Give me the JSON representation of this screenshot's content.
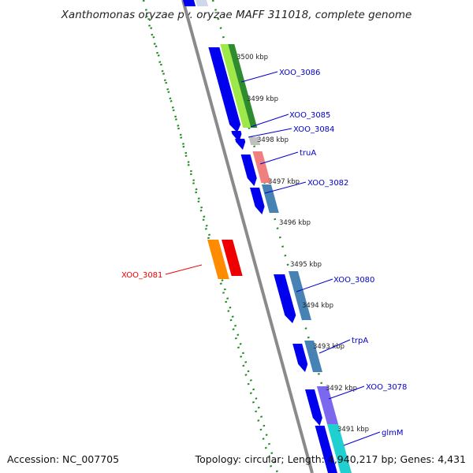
{
  "header": {
    "title": "Xanthomonas oryzae pv. oryzae MAFF 311018, complete genome"
  },
  "footer": {
    "accession": "Accession: NC_007705",
    "summary": "Topology: circular; Length: 4,940,217 bp; Genes: 4,431"
  },
  "colors": {
    "backbone": "#808080",
    "track_dots": "#228b22",
    "blue_gene": "#0000ee",
    "steel_gene": "#4682b4",
    "green_gene": "#2e8b2e",
    "lightgreen_gene": "#9ee84a",
    "lime_gene": "#7cdb2a",
    "salmon_gene": "#f08080",
    "orange_gene": "#ff8c00",
    "red_gene": "#ee0000",
    "purple_gene": "#7b68ee",
    "cyan_gene": "#20d0d0",
    "gray_gene": "#c0c0c0",
    "label_blue": "#0000cc",
    "label_red": "#ee0000"
  },
  "scale_labels": [
    {
      "kbp": "3500 kbp"
    },
    {
      "kbp": "3499 kbp"
    },
    {
      "kbp": "3498 kbp"
    },
    {
      "kbp": "3497 kbp"
    },
    {
      "kbp": "3496 kbp"
    },
    {
      "kbp": "3495 kbp"
    },
    {
      "kbp": "3494 kbp"
    },
    {
      "kbp": "3493 kbp"
    },
    {
      "kbp": "3492 kbp"
    },
    {
      "kbp": "3491 kbp"
    }
  ],
  "gene_labels": [
    {
      "name": "XOO_3086",
      "color": "blue"
    },
    {
      "name": "XOO_3085",
      "color": "blue"
    },
    {
      "name": "XOO_3084",
      "color": "blue"
    },
    {
      "name": "truA",
      "color": "blue"
    },
    {
      "name": "XOO_3082",
      "color": "blue"
    },
    {
      "name": "XOO_3081",
      "color": "red"
    },
    {
      "name": "XOO_3080",
      "color": "blue"
    },
    {
      "name": "trpA",
      "color": "blue"
    },
    {
      "name": "XOO_3078",
      "color": "blue"
    },
    {
      "name": "glmM",
      "color": "blue"
    }
  ]
}
